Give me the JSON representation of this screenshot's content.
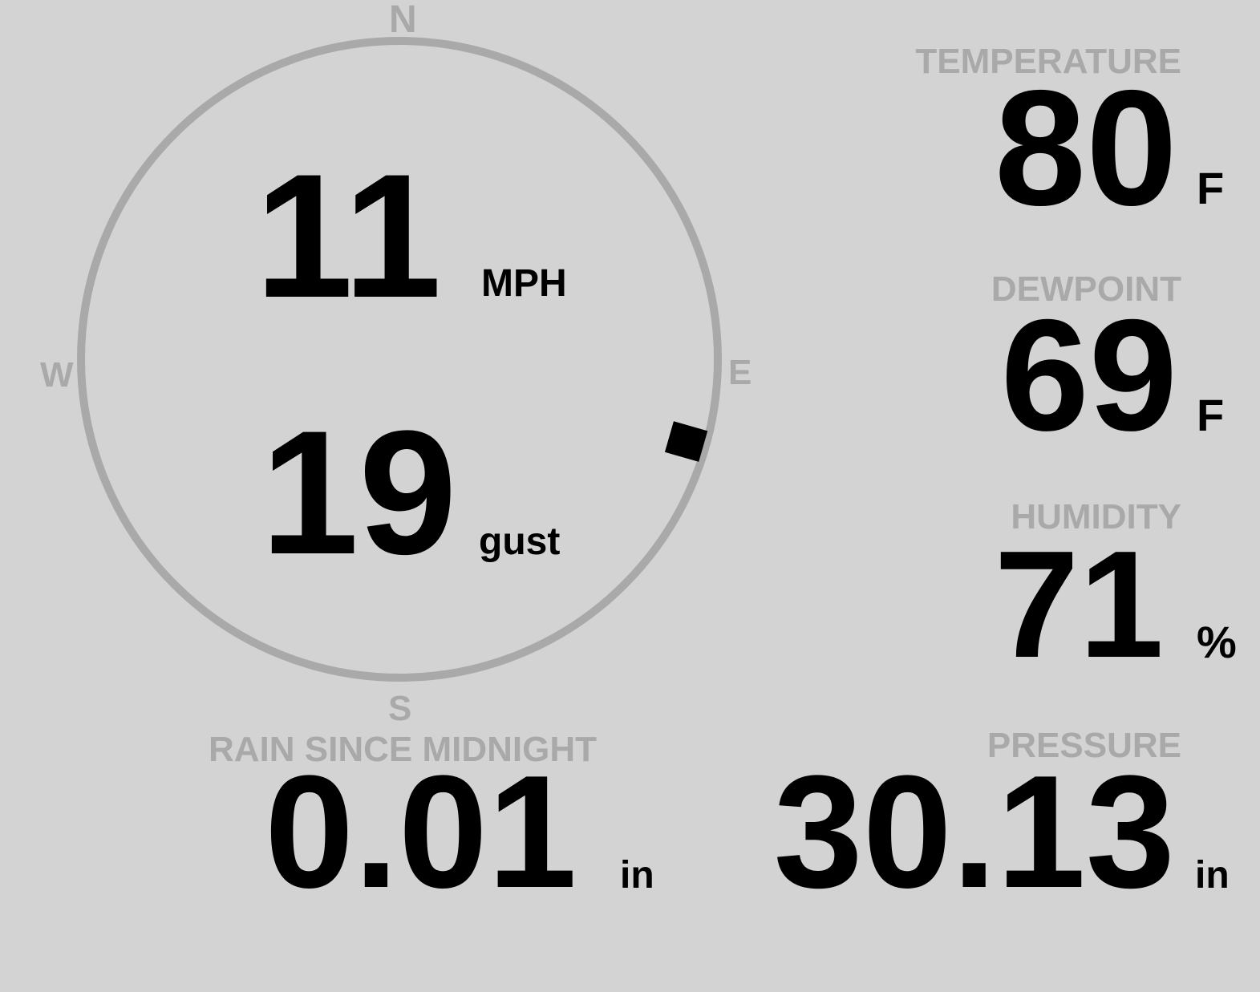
{
  "compass": {
    "north": "N",
    "south": "S",
    "east": "E",
    "west": "W",
    "wind_direction_deg": 106,
    "ring_color": "#a9a9a9",
    "marker_color": "#000000"
  },
  "wind": {
    "speed": "11",
    "speed_unit": "MPH",
    "gust": "19",
    "gust_unit": "gust"
  },
  "temperature": {
    "label": "TEMPERATURE",
    "value": "80",
    "unit": "F"
  },
  "dewpoint": {
    "label": "DEWPOINT",
    "value": "69",
    "unit": "F"
  },
  "humidity": {
    "label": "HUMIDITY",
    "value": "71",
    "unit": "%"
  },
  "rain": {
    "label": "RAIN SINCE MIDNIGHT",
    "value": "0.01",
    "unit": "in"
  },
  "pressure": {
    "label": "PRESSURE",
    "value": "30.13",
    "unit": "in"
  }
}
